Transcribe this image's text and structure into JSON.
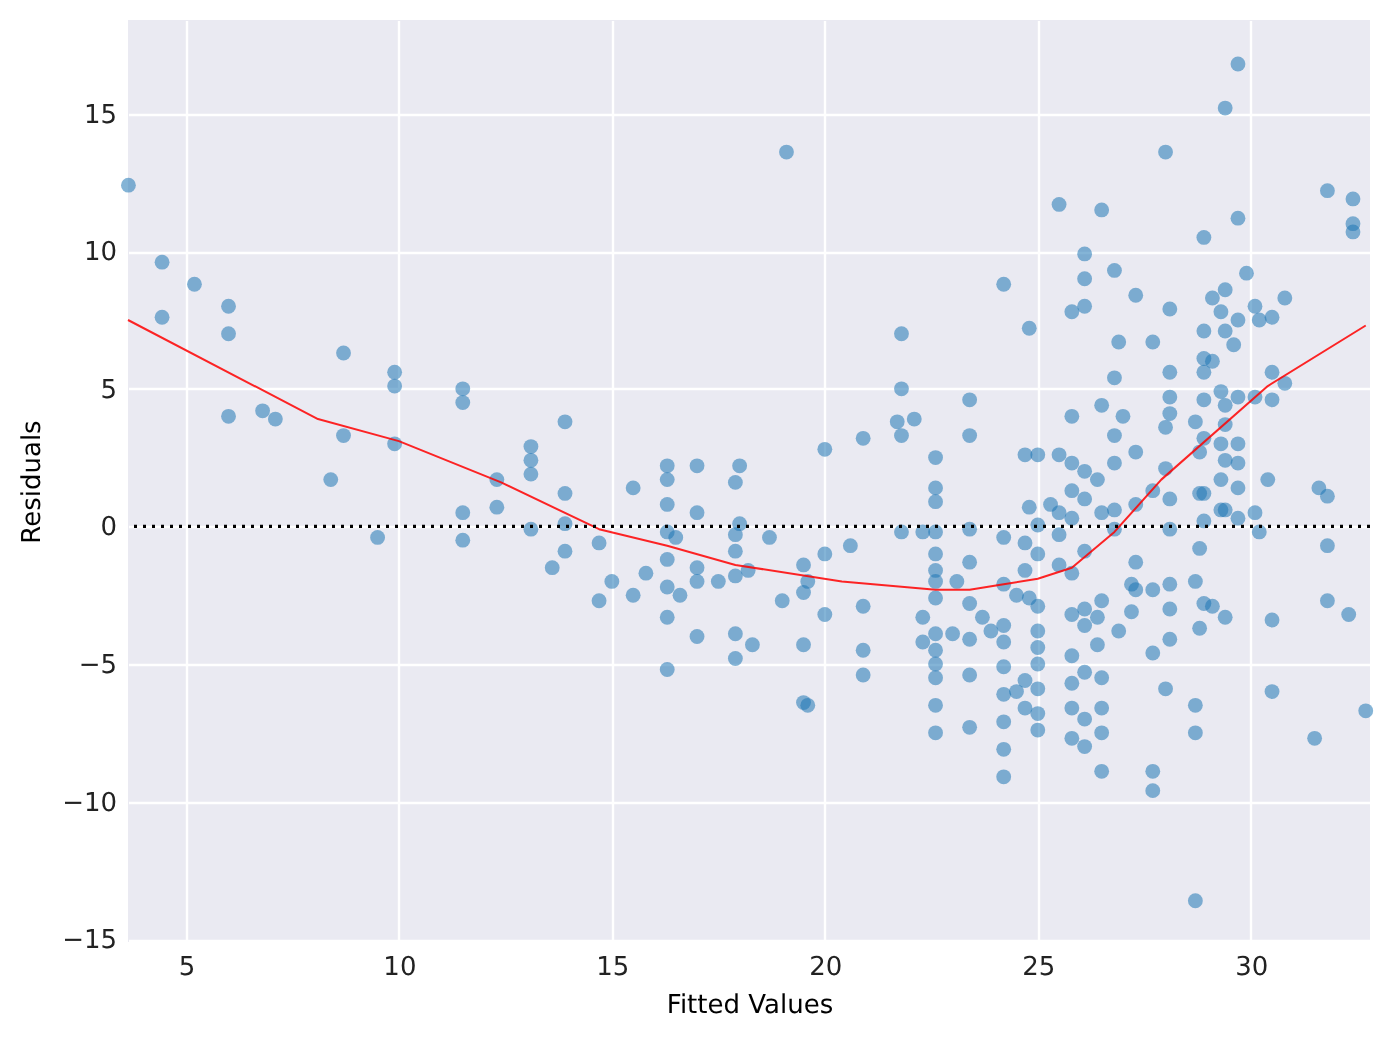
{
  "chart_data": {
    "type": "scatter",
    "xlabel": "Fitted Values",
    "ylabel": "Residuals",
    "xlim": [
      3.64,
      32.8
    ],
    "ylim": [
      -15.1,
      18.4
    ],
    "xticks": [
      5,
      10,
      15,
      20,
      25,
      30
    ],
    "yticks": [
      -15,
      -10,
      -5,
      0,
      5,
      10,
      15
    ],
    "grid": true,
    "series": [
      {
        "color": "#1f77b4",
        "marker": "circle",
        "x": [
          3.65,
          4.44,
          4.44,
          5.2,
          6.0,
          6.0,
          6.0,
          6.8,
          7.1,
          8.7,
          8.7,
          8.4,
          9.5,
          9.9,
          9.9,
          9.9,
          11.5,
          11.5,
          11.5,
          11.5,
          12.3,
          12.3,
          13.1,
          13.1,
          13.1,
          13.1,
          13.6,
          13.9,
          13.9,
          13.9,
          13.9,
          14.7,
          14.7,
          15.0,
          15.5,
          15.5,
          15.8,
          16.3,
          16.3,
          16.3,
          16.3,
          16.3,
          16.3,
          16.3,
          16.3,
          16.5,
          16.6,
          17.0,
          17.0,
          17.0,
          17.0,
          17.0,
          17.5,
          17.9,
          17.9,
          17.9,
          17.9,
          17.9,
          17.9,
          18.0,
          18.0,
          18.2,
          18.3,
          18.7,
          19.1,
          19.0,
          19.5,
          19.5,
          19.5,
          19.5,
          19.6,
          19.6,
          20.0,
          20.0,
          20.0,
          20.6,
          20.9,
          20.9,
          20.9,
          20.9,
          21.7,
          21.8,
          21.8,
          21.8,
          21.8,
          22.1,
          22.3,
          22.3,
          22.3,
          22.6,
          22.6,
          22.6,
          22.6,
          22.6,
          22.6,
          22.6,
          22.6,
          22.6,
          22.6,
          22.6,
          22.6,
          22.6,
          22.6,
          23.0,
          23.1,
          23.4,
          23.4,
          23.4,
          23.4,
          23.4,
          23.4,
          23.4,
          23.4,
          23.7,
          23.9,
          24.2,
          24.2,
          24.2,
          24.2,
          24.2,
          24.2,
          24.2,
          24.2,
          24.2,
          24.2,
          24.7,
          24.8,
          24.8,
          24.7,
          24.7,
          24.5,
          24.7,
          24.5,
          24.7,
          24.8,
          25.0,
          25.0,
          25.0,
          25.0,
          25.0,
          25.0,
          25.0,
          25.0,
          25.0,
          25.0,
          25.3,
          25.5,
          25.5,
          25.5,
          25.5,
          25.5,
          25.8,
          25.8,
          25.8,
          25.8,
          25.8,
          25.8,
          25.8,
          25.8,
          25.8,
          25.8,
          25.8,
          26.1,
          26.1,
          26.1,
          26.1,
          26.1,
          26.1,
          26.1,
          26.1,
          26.1,
          26.1,
          26.1,
          26.5,
          26.5,
          26.5,
          26.5,
          26.5,
          26.5,
          26.5,
          26.5,
          26.4,
          26.4,
          26.4,
          26.8,
          26.8,
          26.8,
          26.8,
          26.8,
          26.8,
          26.9,
          27.0,
          26.9,
          27.2,
          27.2,
          27.3,
          27.3,
          27.3,
          27.3,
          27.3,
          27.7,
          27.7,
          27.7,
          27.7,
          27.7,
          28.0,
          28.1,
          28.1,
          28.1,
          28.1,
          28.0,
          28.0,
          28.1,
          28.1,
          28.1,
          28.1,
          28.1,
          28.0,
          27.7,
          28.7,
          28.7,
          28.7,
          28.8,
          28.7,
          28.8,
          28.7,
          28.8,
          28.8,
          28.9,
          28.9,
          28.9,
          28.9,
          28.9,
          28.9,
          28.9,
          28.9,
          28.9,
          29.1,
          29.1,
          29.1,
          29.3,
          29.3,
          29.3,
          29.3,
          29.3,
          29.4,
          29.4,
          29.4,
          29.4,
          29.4,
          29.4,
          29.4,
          29.4,
          29.6,
          29.7,
          29.7,
          29.7,
          29.7,
          29.7,
          29.7,
          29.7,
          29.7,
          29.9,
          30.1,
          30.1,
          30.1,
          30.2,
          30.2,
          30.5,
          30.8,
          30.5,
          30.8,
          30.5,
          30.4,
          30.5,
          30.5,
          31.5,
          31.6,
          31.8,
          31.8,
          31.8,
          31.8,
          32.3,
          32.4,
          32.4,
          32.4,
          32.7
        ],
        "values": [
          12.4,
          9.6,
          7.6,
          8.8,
          8.0,
          7.0,
          4.0,
          4.2,
          3.9,
          6.3,
          3.3,
          1.7,
          -0.4,
          5.6,
          5.1,
          3.0,
          5.0,
          4.5,
          0.5,
          -0.5,
          1.7,
          0.7,
          2.9,
          2.4,
          1.9,
          -0.1,
          -1.5,
          3.8,
          1.2,
          0.1,
          -0.9,
          -0.6,
          -2.7,
          -2.0,
          1.4,
          -2.5,
          -1.7,
          2.2,
          1.7,
          0.8,
          -0.2,
          -1.2,
          -2.2,
          -3.3,
          -5.2,
          -0.4,
          -2.5,
          2.2,
          0.5,
          -1.5,
          -2.0,
          -4.0,
          -2.0,
          1.6,
          -0.3,
          -0.9,
          -1.8,
          -3.9,
          -4.8,
          2.2,
          0.1,
          -1.6,
          -4.3,
          -0.4,
          13.6,
          -2.7,
          -1.4,
          -2.4,
          -4.3,
          -6.4,
          -2.0,
          -6.5,
          2.8,
          -1.0,
          -3.2,
          -0.7,
          3.2,
          -2.9,
          -4.5,
          -5.4,
          3.8,
          7.0,
          5.0,
          3.3,
          -0.2,
          3.9,
          -0.2,
          -3.3,
          -4.2,
          2.5,
          1.4,
          0.9,
          -0.2,
          -1.0,
          -1.6,
          -2.0,
          -2.6,
          -3.9,
          -4.5,
          -5.0,
          -5.5,
          -6.5,
          -7.5,
          -3.9,
          -2.0,
          4.6,
          3.3,
          -0.1,
          -1.3,
          -2.8,
          -4.1,
          -5.4,
          -7.3,
          -3.3,
          -3.8,
          8.8,
          -0.4,
          -2.1,
          -3.6,
          -4.2,
          -5.1,
          -6.1,
          -7.1,
          -8.1,
          -9.1,
          2.6,
          7.2,
          0.7,
          -0.6,
          -1.6,
          -2.5,
          -5.6,
          -6.0,
          -6.6,
          -2.6,
          -2.9,
          -3.8,
          -4.4,
          -5.0,
          -5.9,
          -6.8,
          -7.4,
          2.6,
          0.05,
          -1.0,
          0.8,
          11.7,
          2.6,
          0.5,
          -0.3,
          -1.4,
          7.8,
          4.0,
          2.3,
          1.3,
          0.3,
          -1.7,
          -3.2,
          -4.7,
          -5.7,
          -6.6,
          -7.7,
          9.9,
          9.0,
          8.0,
          2.0,
          1.0,
          -0.9,
          -3.0,
          -3.6,
          -5.3,
          -7.0,
          -8.0,
          11.5,
          4.4,
          0.5,
          -2.7,
          -5.5,
          -6.6,
          -7.5,
          -8.9,
          1.7,
          -3.3,
          -4.3,
          9.3,
          5.4,
          3.3,
          2.3,
          0.6,
          -0.1,
          6.7,
          4.0,
          -3.8,
          -2.1,
          -3.1,
          8.4,
          2.7,
          0.8,
          -1.3,
          -2.3,
          6.7,
          1.3,
          -2.3,
          -4.6,
          -9.6,
          13.6,
          7.9,
          5.6,
          4.7,
          4.1,
          3.6,
          2.1,
          1.0,
          -0.1,
          -2.1,
          -3.0,
          -4.1,
          -5.9,
          -8.9,
          -13.6,
          -6.5,
          -7.5,
          -0.8,
          -2.0,
          -3.7,
          3.8,
          2.7,
          1.2,
          10.5,
          7.1,
          6.1,
          5.6,
          4.6,
          3.2,
          1.2,
          0.2,
          -2.8,
          8.3,
          6.0,
          -2.9,
          7.8,
          4.9,
          3.0,
          1.7,
          0.6,
          15.2,
          8.6,
          7.1,
          4.4,
          3.7,
          2.4,
          0.6,
          -3.3,
          6.6,
          16.8,
          11.2,
          7.5,
          4.7,
          3.0,
          2.3,
          1.4,
          0.3,
          9.2,
          8.0,
          4.7,
          0.5,
          -0.2,
          7.5,
          7.6,
          8.3,
          5.6,
          5.2,
          4.6,
          1.7,
          -3.4,
          -6.0,
          -7.7,
          1.4,
          1.1,
          12.2,
          -0.7,
          -2.7,
          -3.2,
          11.9,
          11.0,
          10.7,
          -6.7
        ]
      },
      {
        "type": "line",
        "color": "#ff0000",
        "x": [
          3.64,
          8.1,
          10.0,
          12.4,
          14.7,
          16.3,
          17.9,
          20.4,
          22.6,
          23.4,
          24.2,
          25.0,
          25.8,
          26.8,
          27.9,
          30.4,
          32.7
        ],
        "values": [
          7.5,
          3.9,
          3.1,
          1.6,
          -0.1,
          -0.7,
          -1.4,
          -2.0,
          -2.3,
          -2.3,
          -2.1,
          -1.9,
          -1.5,
          -0.2,
          1.7,
          5.1,
          7.3
        ]
      }
    ],
    "ref_lines": [
      {
        "axis": "y",
        "value": 0,
        "color": "#000000",
        "line_style": "dotted"
      }
    ]
  }
}
